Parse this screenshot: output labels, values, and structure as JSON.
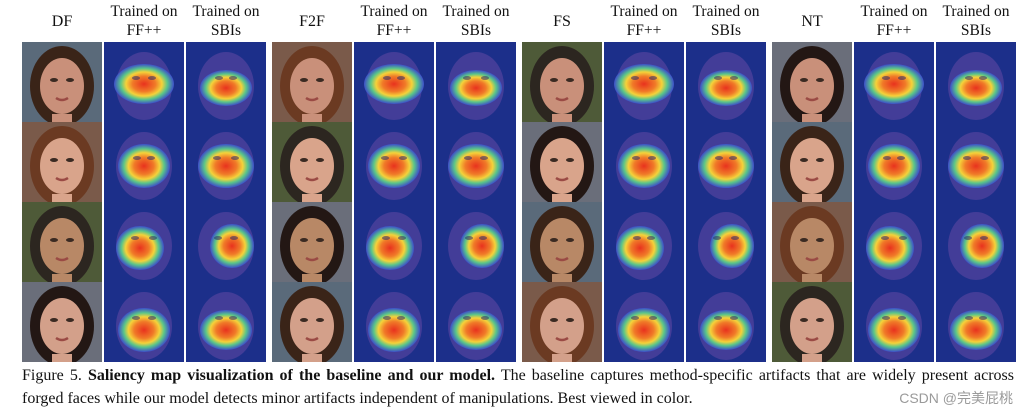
{
  "groups": [
    {
      "method": "DF",
      "col1": "Trained on FF++",
      "col2": "Trained on SBIs"
    },
    {
      "method": "F2F",
      "col1": "Trained on FF++",
      "col2": "Trained on SBIs"
    },
    {
      "method": "FS",
      "col1": "Trained on FF++",
      "col2": "Trained on SBIs"
    },
    {
      "method": "NT",
      "col1": "Trained on FF++",
      "col2": "Trained on SBIs"
    }
  ],
  "caption": {
    "label": "Figure 5.",
    "title": "Saliency map visualization of the baseline and our model.",
    "body": "The baseline captures method-specific artifacts that are widely present across forged faces while our model detects minor artifacts independent of manipulations. Best viewed in color."
  },
  "watermark": "CSDN @完美屁桃",
  "colors": {
    "heat_hot": "#e8321e",
    "heat_warm": "#f5d23a",
    "heat_cool": "#3d4fc9",
    "background_blue": "#1c2f8a"
  }
}
